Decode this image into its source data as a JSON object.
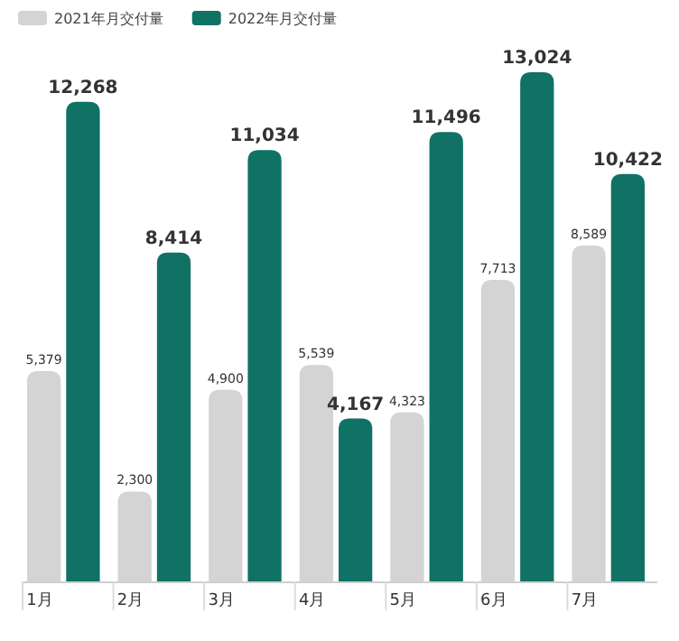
{
  "chart_data": {
    "type": "bar",
    "categories": [
      "1月",
      "2月",
      "3月",
      "4月",
      "5月",
      "6月",
      "7月"
    ],
    "series": [
      {
        "name": "2021年月交付量",
        "color": "#d4d4d4",
        "values": [
          5379,
          2300,
          4900,
          5539,
          4323,
          7713,
          8589
        ],
        "value_labels": [
          "5,379",
          "2,300",
          "4,900",
          "5,539",
          "4,323",
          "7,713",
          "8,589"
        ]
      },
      {
        "name": "2022年月交付量",
        "color": "#0f7265",
        "values": [
          12268,
          8414,
          11034,
          4167,
          11496,
          13024,
          10422
        ],
        "value_labels": [
          "12,268",
          "8,414",
          "11,034",
          "4,167",
          "11,496",
          "13,024",
          "10,422"
        ]
      }
    ],
    "legend": "top left"
  }
}
